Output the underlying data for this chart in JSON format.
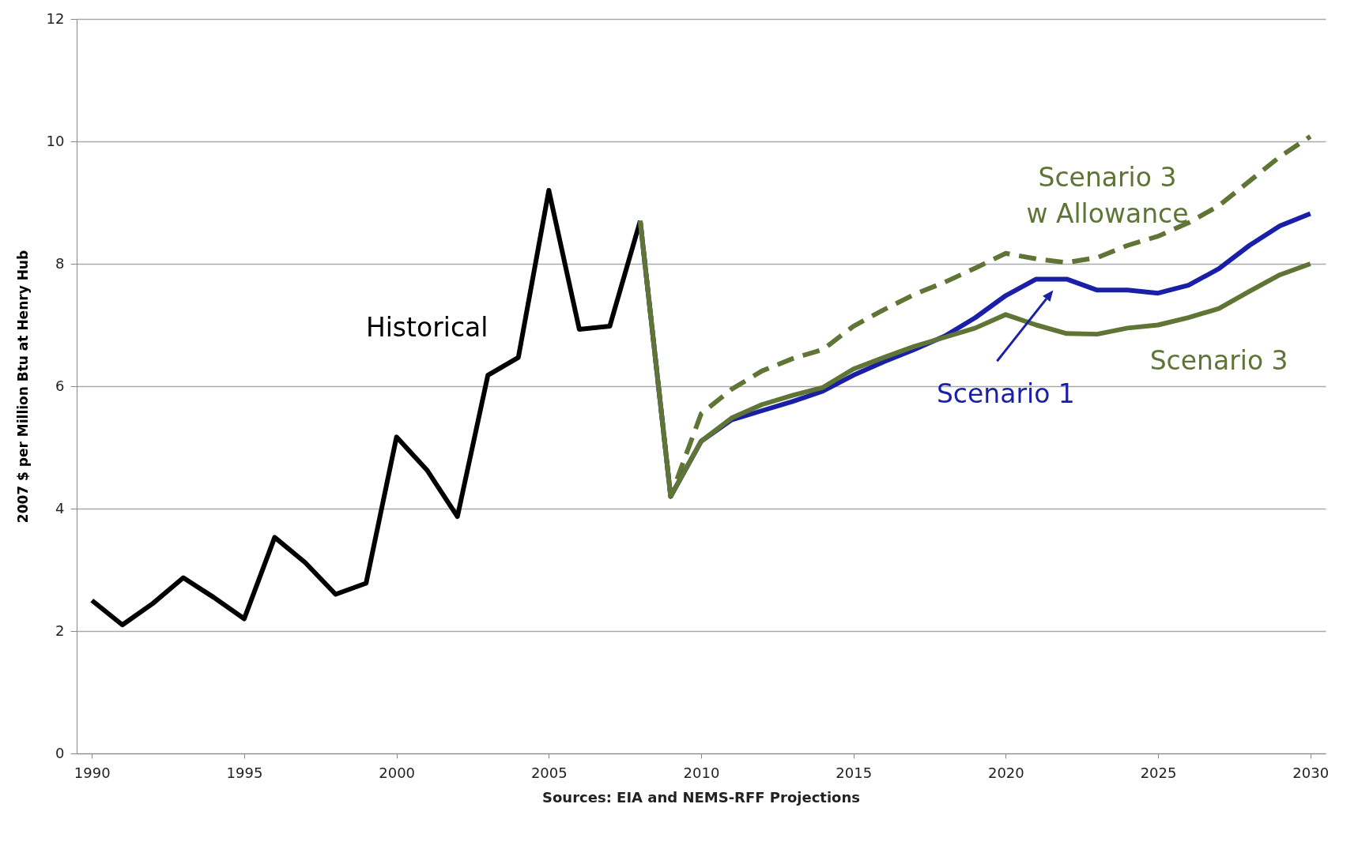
{
  "chart_data": {
    "type": "line",
    "ylabel": "2007 $ per Million Btu at Henry Hub",
    "annotations": [
      "Sources: EIA and NEMS-RFF Projections"
    ],
    "xlim": [
      1989.5,
      2030.5
    ],
    "xticks": [
      1990,
      1995,
      2000,
      2005,
      2010,
      2015,
      2020,
      2025,
      2030
    ],
    "ylim": [
      0,
      12
    ],
    "yticks": [
      0,
      2,
      4,
      6,
      8,
      10,
      12
    ],
    "grid": "y",
    "series": [
      {
        "name": "Historical",
        "color": "#000000",
        "x": [
          1990,
          1991,
          1992,
          1993,
          1994,
          1995,
          1996,
          1997,
          1998,
          1999,
          2000,
          2001,
          2002,
          2003,
          2004,
          2005,
          2006,
          2007,
          2008
        ],
        "values": [
          2.5,
          2.1,
          2.45,
          2.87,
          2.55,
          2.2,
          3.53,
          3.12,
          2.6,
          2.78,
          5.17,
          4.63,
          3.87,
          6.18,
          6.47,
          9.2,
          6.93,
          6.98,
          8.7
        ]
      },
      {
        "name": "Scenario 3\nw Allowance",
        "color": "#5f7536",
        "line_style": "dashed",
        "x": [
          2008,
          2009,
          2010,
          2011,
          2012,
          2013,
          2014,
          2015,
          2016,
          2017,
          2018,
          2019,
          2020,
          2021,
          2022,
          2023,
          2024,
          2025,
          2026,
          2027,
          2028,
          2029,
          2030
        ],
        "values": [
          8.7,
          4.2,
          5.55,
          5.95,
          6.25,
          6.45,
          6.6,
          6.98,
          7.25,
          7.5,
          7.7,
          7.93,
          8.17,
          8.08,
          8.02,
          8.1,
          8.3,
          8.45,
          8.67,
          8.95,
          9.35,
          9.75,
          10.08
        ]
      },
      {
        "name": "Scenario 1",
        "color": "#1a1fa8",
        "x": [
          2008,
          2009,
          2010,
          2011,
          2012,
          2013,
          2014,
          2015,
          2016,
          2017,
          2018,
          2019,
          2020,
          2021,
          2022,
          2023,
          2024,
          2025,
          2026,
          2027,
          2028,
          2029,
          2030
        ],
        "values": [
          8.7,
          4.2,
          5.1,
          5.45,
          5.6,
          5.75,
          5.92,
          6.18,
          6.4,
          6.6,
          6.82,
          7.12,
          7.48,
          7.75,
          7.75,
          7.57,
          7.57,
          7.52,
          7.65,
          7.92,
          8.3,
          8.62,
          8.82
        ]
      },
      {
        "name": "Scenario 3",
        "color": "#5f7536",
        "x": [
          2008,
          2009,
          2010,
          2011,
          2012,
          2013,
          2014,
          2015,
          2016,
          2017,
          2018,
          2019,
          2020,
          2021,
          2022,
          2023,
          2024,
          2025,
          2026,
          2027,
          2028,
          2029,
          2030
        ],
        "values": [
          8.7,
          4.2,
          5.1,
          5.48,
          5.7,
          5.85,
          5.98,
          6.28,
          6.47,
          6.65,
          6.8,
          6.95,
          7.17,
          7.0,
          6.86,
          6.85,
          6.95,
          7.0,
          7.12,
          7.27,
          7.55,
          7.82,
          8.0
        ]
      }
    ]
  }
}
